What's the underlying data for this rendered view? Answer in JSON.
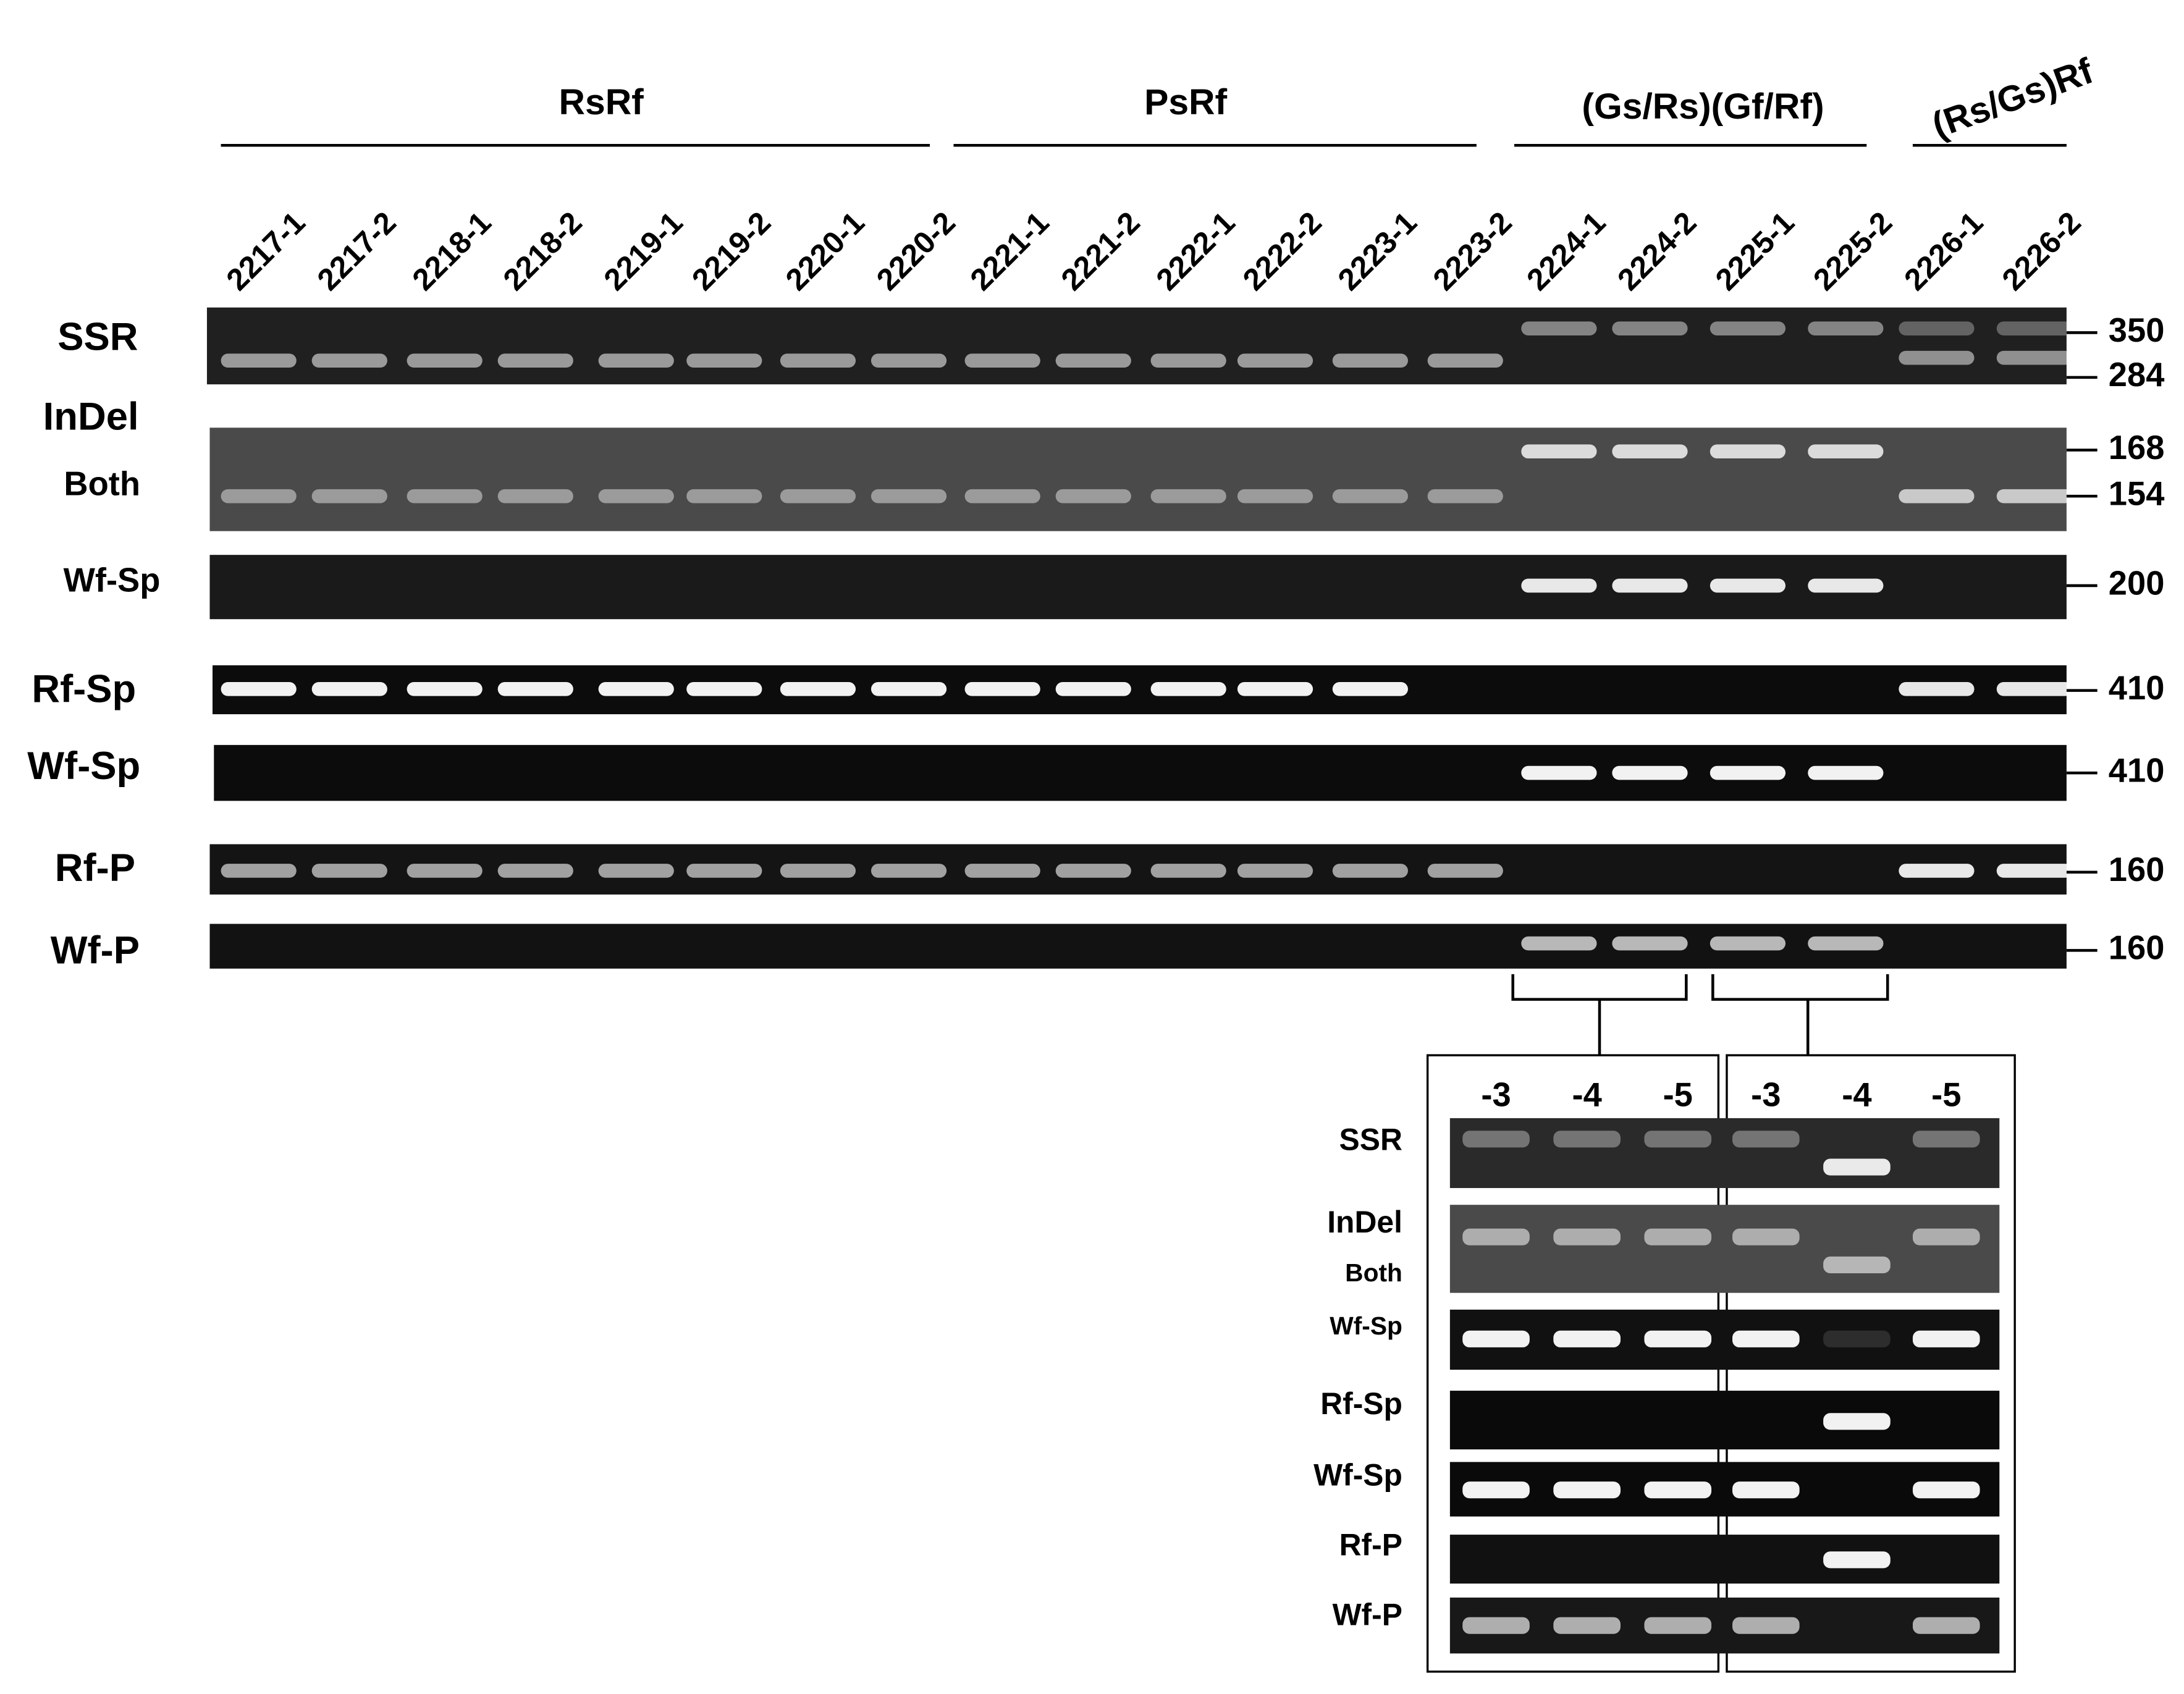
{
  "groups": [
    {
      "label": "RsRf"
    },
    {
      "label": "PsRf"
    },
    {
      "label": "(Gs/Rs)(Gf/Rf)"
    },
    {
      "label": "(Rs/Gs)Rf"
    }
  ],
  "lanes": [
    "2217-1",
    "2217-2",
    "2218-1",
    "2218-2",
    "2219-1",
    "2219-2",
    "2220-1",
    "2220-2",
    "2221-1",
    "2221-2",
    "2222-1",
    "2222-2",
    "2223-1",
    "2223-2",
    "2224-1",
    "2224-2",
    "2225-1",
    "2225-2",
    "2226-1",
    "2226-2"
  ],
  "rows": [
    {
      "label": "SSR",
      "markers": [
        350,
        284
      ]
    },
    {
      "label": "InDel",
      "sublabel": "Both",
      "markers": [
        168,
        154
      ]
    },
    {
      "label": "Wf-Sp",
      "markers": [
        200
      ]
    },
    {
      "label": "Rf-Sp",
      "markers": [
        410
      ]
    },
    {
      "label": "Wf-Sp",
      "markers": [
        410
      ]
    },
    {
      "label": "Rf-P",
      "markers": [
        160
      ]
    },
    {
      "label": "Wf-P",
      "markers": [
        160
      ]
    }
  ],
  "inset": {
    "columns": [
      "-3",
      "-4",
      "-5",
      "-3",
      "-4",
      "-5"
    ],
    "rows": [
      "SSR",
      "InDel",
      "Both",
      "Wf-Sp",
      "Rf-Sp",
      "Wf-Sp",
      "Rf-P",
      "Wf-P"
    ]
  }
}
